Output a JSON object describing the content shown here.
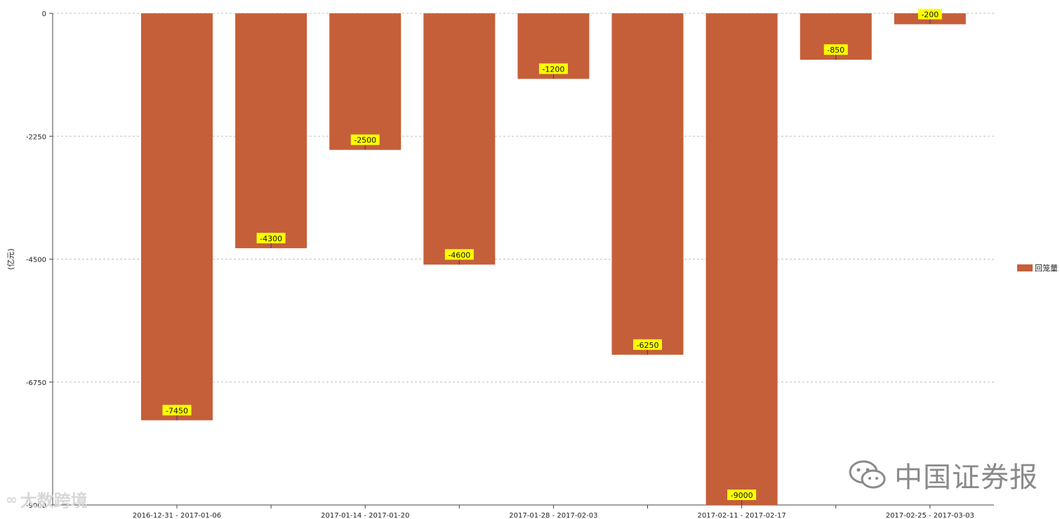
{
  "chart_data": {
    "type": "bar",
    "categories": [
      "2016-12-31 - 2017-01-06",
      "",
      "2017-01-14 - 2017-01-20",
      "",
      "2017-01-28 - 2017-02-03",
      "",
      "2017-02-11 - 2017-02-17",
      "",
      "2017-02-25 - 2017-03-03"
    ],
    "series": [
      {
        "name": "回笼量",
        "values": [
          -7450,
          -4300,
          -2500,
          -4600,
          -1200,
          -6250,
          -9000,
          -850,
          -200
        ]
      }
    ],
    "ylabel": "(亿元)",
    "ylim": [
      -9000,
      0
    ],
    "yticks": [
      0,
      -2250,
      -4500,
      -6750,
      -9000
    ],
    "grid": true,
    "legend_position": "right",
    "colors": {
      "bar": "#c55f39",
      "data_label_bg": "#ffff00",
      "grid": "#c0c0c0"
    }
  },
  "watermark": {
    "text": "中国证券报",
    "icon": "wechat-icon"
  },
  "logo": {
    "text": "大数跨境",
    "icon": "logo-mark-icon"
  }
}
